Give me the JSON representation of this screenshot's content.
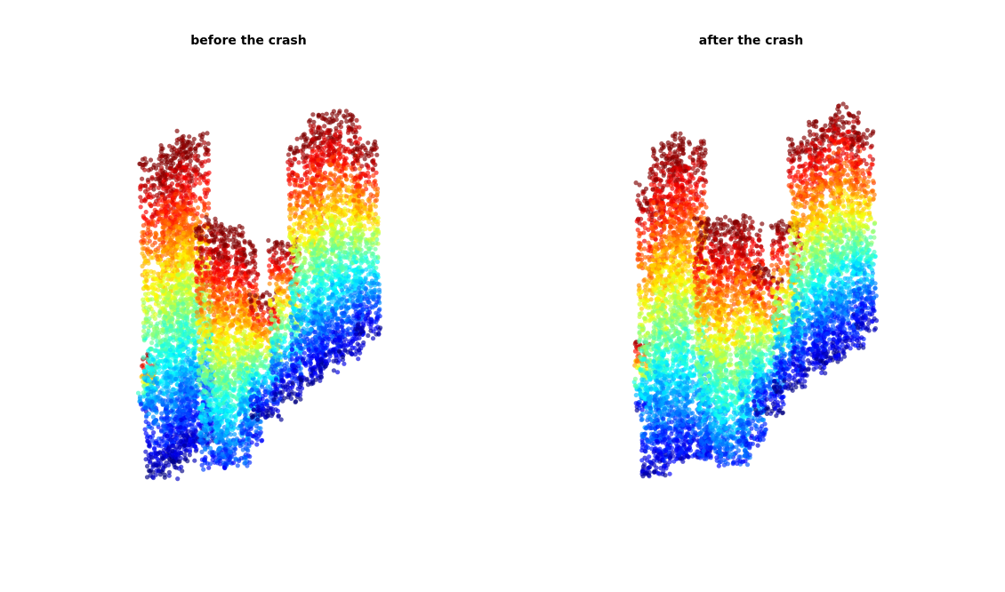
{
  "chart_data": [
    {
      "type": "scatter",
      "title": "before the crash",
      "xlabel": "",
      "ylabel": "",
      "grid": false,
      "axes_visible": false,
      "colormap": "jet",
      "color_encodes": "height",
      "point_alpha": 0.6,
      "description_visual": "dense 3D point cloud with a raised left section, a tall central column and a broad right slab",
      "clusters": [
        {
          "x": [
            155,
            172
          ],
          "y": [
            400,
            465
          ]
        },
        {
          "x": [
            162,
            245
          ],
          "y": [
            145,
            540
          ]
        },
        {
          "x": [
            228,
            283
          ],
          "y": [
            240,
            530
          ]
        },
        {
          "x": [
            270,
            345
          ],
          "y": [
            320,
            480
          ]
        },
        {
          "x": [
            310,
            430
          ],
          "y": [
            118,
            430
          ]
        }
      ]
    },
    {
      "type": "scatter",
      "title": "after the crash",
      "xlabel": "",
      "ylabel": "",
      "grid": false,
      "axes_visible": false,
      "colormap": "jet",
      "color_encodes": "height",
      "point_alpha": 0.6,
      "description_visual": "same point cloud after deformation; left section compressed and the middle raised",
      "clusters": [
        {
          "x": [
            150,
            175
          ],
          "y": [
            380,
            465
          ]
        },
        {
          "x": [
            155,
            230
          ],
          "y": [
            145,
            540
          ]
        },
        {
          "x": [
            220,
            295
          ],
          "y": [
            240,
            525
          ]
        },
        {
          "x": [
            285,
            360
          ],
          "y": [
            300,
            470
          ]
        },
        {
          "x": [
            310,
            425
          ],
          "y": [
            108,
            415
          ]
        }
      ]
    }
  ]
}
